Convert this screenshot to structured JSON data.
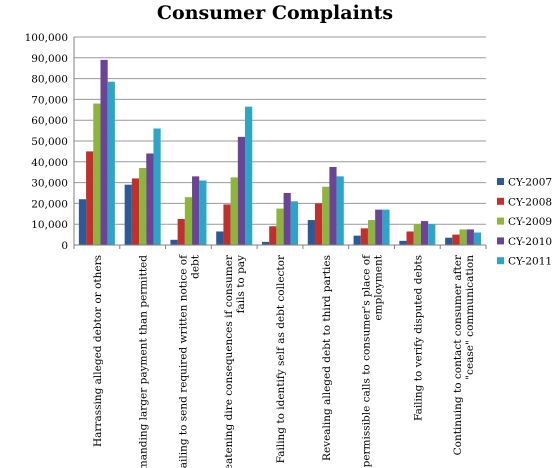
{
  "chart_data": {
    "type": "bar",
    "title": "Consumer Complaints",
    "xlabel": "",
    "ylabel": "",
    "ylim": [
      0,
      100000
    ],
    "yticks": [
      "0",
      "10,000",
      "20,000",
      "30,000",
      "40,000",
      "50,000",
      "60,000",
      "70,000",
      "80,000",
      "90,000",
      "100,000"
    ],
    "grid": true,
    "legend_position": "right",
    "categories": [
      [
        "Harrassing alleged debtor or others"
      ],
      [
        "Demanding larger payment than permitted"
      ],
      [
        "Failing to send required written notice of",
        "debt"
      ],
      [
        "Threatening dire consequences if consumer",
        "fails to pay"
      ],
      [
        "Failing to identify self as debt collector"
      ],
      [
        "Revealing alleged debt to third parties"
      ],
      [
        "Impermissible calls to consumer's place of",
        "employment"
      ],
      [
        "Failing to verify disputed debts"
      ],
      [
        "Continuing to contact consumer after",
        "\"cease\" communication"
      ]
    ],
    "series": [
      {
        "name": "CY-2007",
        "color": "#2C5A97",
        "values": [
          22000,
          29000,
          2500,
          6500,
          1500,
          12000,
          4500,
          2000,
          3500
        ]
      },
      {
        "name": "CY-2008",
        "color": "#C0302C",
        "values": [
          45000,
          32000,
          12500,
          19500,
          9000,
          20000,
          8000,
          6500,
          5000
        ]
      },
      {
        "name": "CY-2009",
        "color": "#8DB43C",
        "values": [
          68000,
          37000,
          23000,
          32500,
          17500,
          28000,
          12000,
          10000,
          7500
        ]
      },
      {
        "name": "CY-2010",
        "color": "#6A4596",
        "values": [
          89000,
          44000,
          33000,
          52000,
          25000,
          37500,
          17000,
          11500,
          7500
        ]
      },
      {
        "name": "CY-2011",
        "color": "#2EA4C6",
        "values": [
          78500,
          56000,
          31000,
          66500,
          21000,
          33000,
          17000,
          10000,
          6000
        ]
      }
    ]
  }
}
